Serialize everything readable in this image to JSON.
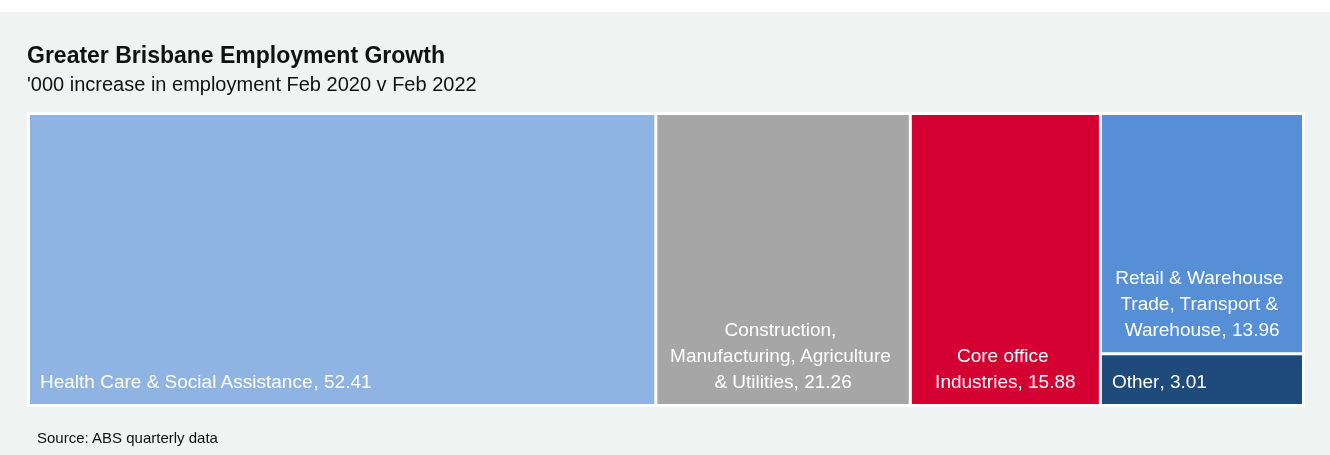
{
  "chart_data": {
    "type": "other",
    "title": "Greater Brisbane Employment Growth",
    "subtitle": "'000 increase in employment Feb 2020 v Feb 2022",
    "categories": [
      "Health Care & Social Assistance",
      "Construction, Manufacturing, Agriculture & Utilities",
      "Core office Industries",
      "Retail & Warehouse Trade, Transport & Warehouse",
      "Other"
    ],
    "values": [
      52.41,
      21.26,
      15.88,
      13.96,
      3.01
    ],
    "colors": [
      "#8fb3e3",
      "#a6a6a6",
      "#d50032",
      "#568fd6",
      "#1f4a7c"
    ],
    "value_labels": [
      ", 52.41",
      ", 21.26",
      ", 15.88",
      ", 13.96",
      ", 3.01"
    ],
    "annotations": [
      "Source: ABS quarterly data"
    ]
  }
}
